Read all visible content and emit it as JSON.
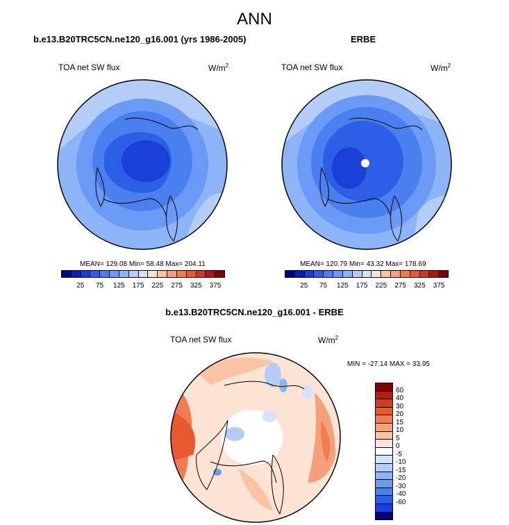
{
  "figure": {
    "title": "ANN",
    "bottom_title": "b.e13.B20TRC5CN.ne120_g16.001 - ERBE"
  },
  "panels": [
    {
      "title": "b.e13.B20TRC5CN.ne120_g16.001 (yrs 1986-2005)",
      "variable": "TOA net SW flux",
      "units": "W/m",
      "units_sup": "2",
      "stats": "MEAN= 129.08  Min=  58.48  Max= 204.11"
    },
    {
      "title": "ERBE",
      "variable": "TOA net SW flux",
      "units": "W/m",
      "units_sup": "2",
      "stats": "MEAN= 120.79  Min=  43.32  Max= 178.69"
    },
    {
      "variable": "TOA net SW flux",
      "units": "W/m",
      "units_sup": "2",
      "stats": "MIN = -27.14 MAX =  33.95"
    }
  ],
  "colorbar_abs": {
    "colors": [
      "#00007a",
      "#0a1fb8",
      "#1a3fd6",
      "#2d5fe6",
      "#4a7ff0",
      "#6a9af5",
      "#8db4f7",
      "#b3cdf8",
      "#d5e3fa",
      "#fde3d3",
      "#f9c3a5",
      "#f5a07a",
      "#f07d52",
      "#e85a2d",
      "#d2381a",
      "#a81a0f",
      "#7a0707"
    ],
    "tick_labels": [
      "25",
      "75",
      "125",
      "175",
      "225",
      "275",
      "325",
      "375"
    ]
  },
  "colorbar_diff": {
    "colors": [
      "#7a0707",
      "#b81c10",
      "#d63a1c",
      "#e85a2d",
      "#f07d52",
      "#f5a07a",
      "#f9c3a5",
      "#fde3d3",
      "#ffffff",
      "#d5e3fa",
      "#b3cdf8",
      "#8db4f7",
      "#6a9af5",
      "#4a7ff0",
      "#2d5fe6",
      "#1a3fd6",
      "#00007a"
    ],
    "tick_labels": [
      "60",
      "40",
      "30",
      "20",
      "15",
      "10",
      "5",
      "0",
      "-5",
      "-10",
      "-15",
      "-20",
      "-30",
      "-40",
      "-60"
    ]
  }
}
